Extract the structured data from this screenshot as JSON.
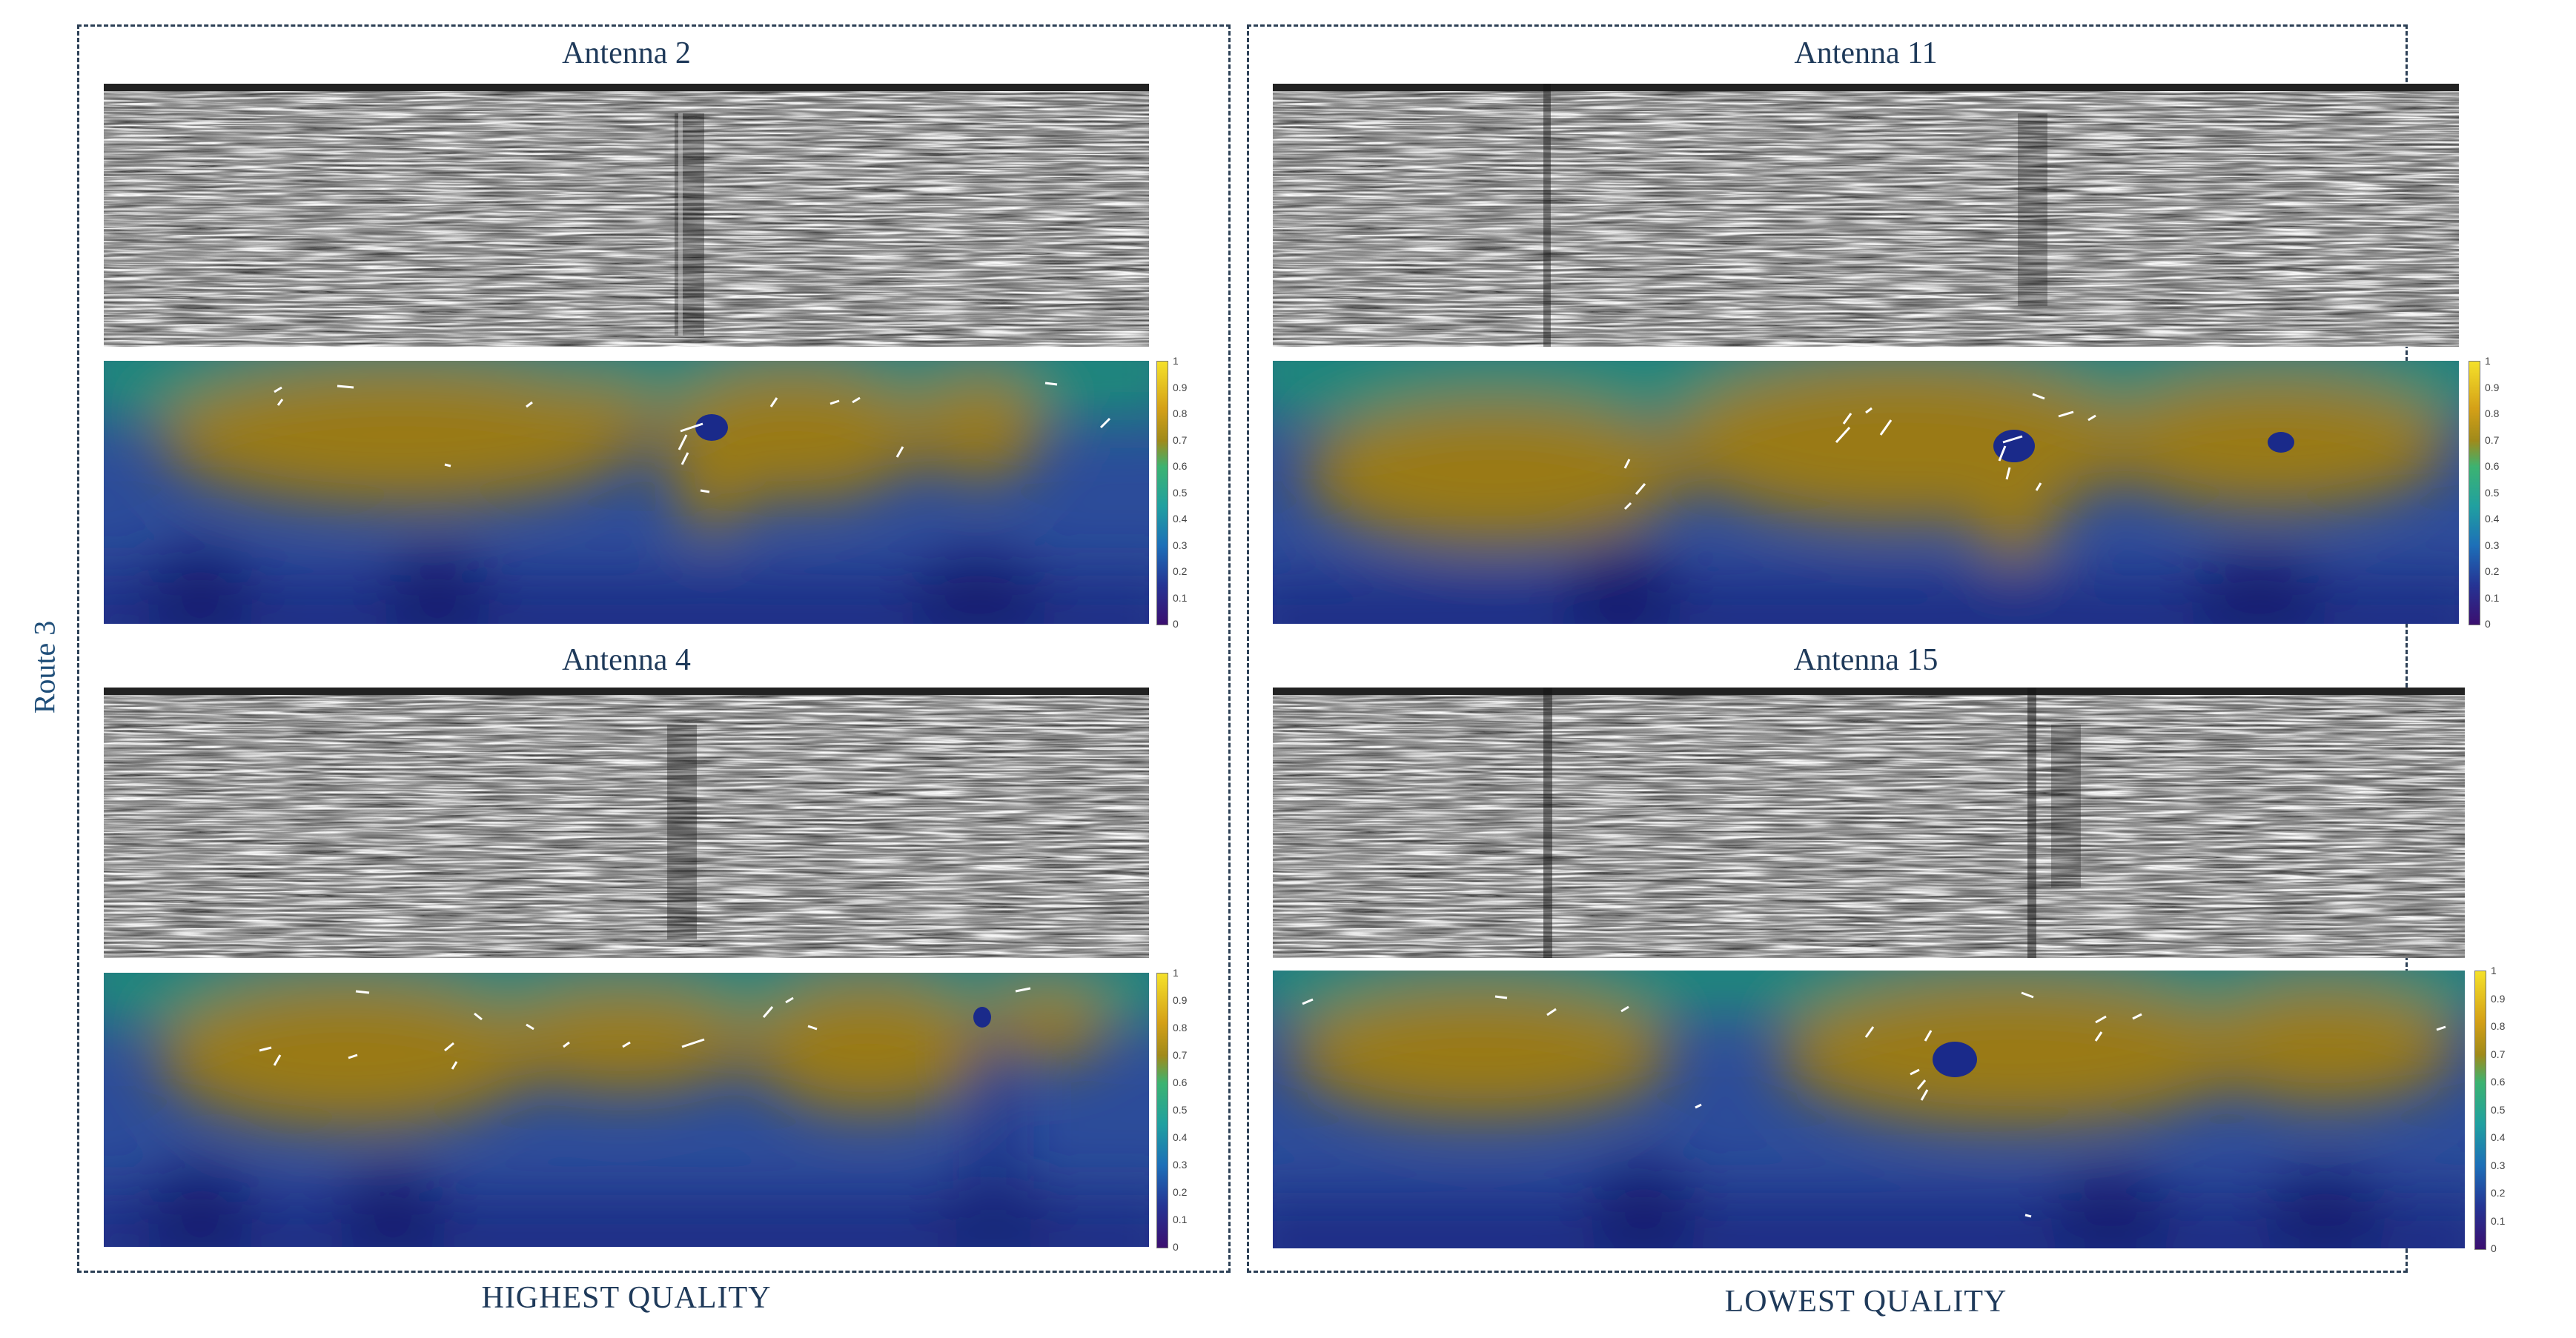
{
  "route_label": "Route 3",
  "panels": [
    {
      "title": "Antenna 2"
    },
    {
      "title": "Antenna 11"
    },
    {
      "title": "Antenna 4"
    },
    {
      "title": "Antenna 15"
    }
  ],
  "colorbar_ticks": [
    "1",
    "0.9",
    "0.8",
    "0.7",
    "0.6",
    "0.5",
    "0.4",
    "0.3",
    "0.2",
    "0.1",
    "0"
  ],
  "quality_labels": {
    "left": "HIGHEST QUALITY",
    "right": "LOWEST QUALITY"
  }
}
